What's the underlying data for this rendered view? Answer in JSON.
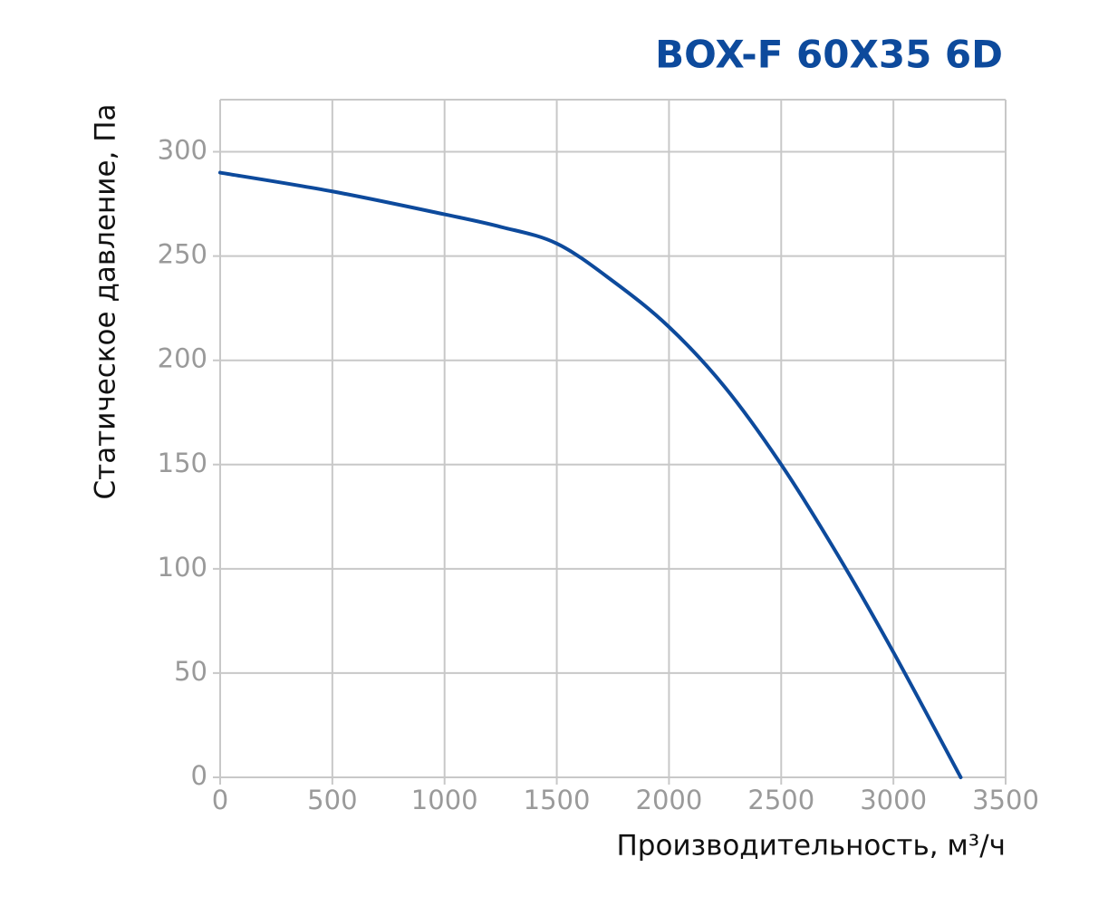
{
  "chart_data": {
    "type": "line",
    "title": "BOX-F 60X35 6D",
    "x_label": "Производительность, м³/ч",
    "y_label": "Статическое давление, Па",
    "x": [
      0,
      500,
      1000,
      1250,
      1500,
      1750,
      2000,
      2250,
      2500,
      2750,
      3000,
      3300
    ],
    "series": [
      {
        "name": "BOX-F 60X35 6D",
        "color": "#0d4a9c",
        "values": [
          290,
          281,
          270,
          264,
          256,
          238,
          216,
          187,
          150,
          107,
          60,
          0
        ]
      }
    ],
    "xlim": [
      0,
      3500
    ],
    "ylim": [
      0,
      325
    ],
    "xticks": [
      0,
      500,
      1000,
      1500,
      2000,
      2500,
      3000,
      3500
    ],
    "yticks": [
      0,
      50,
      100,
      150,
      200,
      250,
      300
    ],
    "grid": true
  }
}
